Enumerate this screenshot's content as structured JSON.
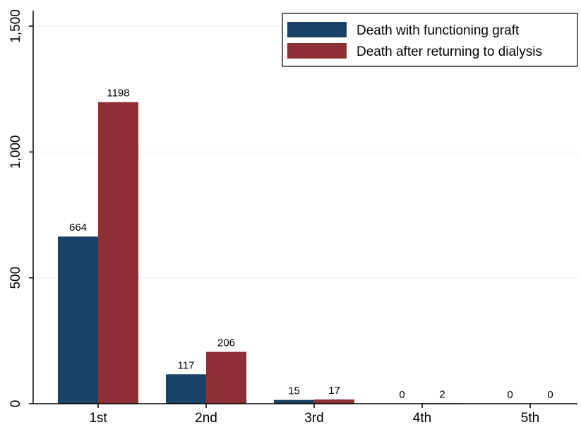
{
  "chart_data": {
    "type": "bar",
    "categories": [
      "1st",
      "2nd",
      "3rd",
      "4th",
      "5th"
    ],
    "series": [
      {
        "name": "Death with functioning graft",
        "values": [
          664,
          117,
          15,
          0,
          0
        ],
        "color": "#1a4268"
      },
      {
        "name": "Death after returning to dialysis",
        "values": [
          1198,
          206,
          17,
          2,
          0
        ],
        "color": "#8e2f35"
      }
    ],
    "yticks": [
      0,
      500,
      1000,
      1500
    ],
    "ytick_labels": [
      "0",
      "500",
      "1,000",
      "1,500"
    ],
    "ylim": [
      0,
      1500
    ],
    "grid": true,
    "grid_color": "#eaf0f3",
    "legend_position": "top-right",
    "title": "",
    "xlabel": "",
    "ylabel": ""
  }
}
